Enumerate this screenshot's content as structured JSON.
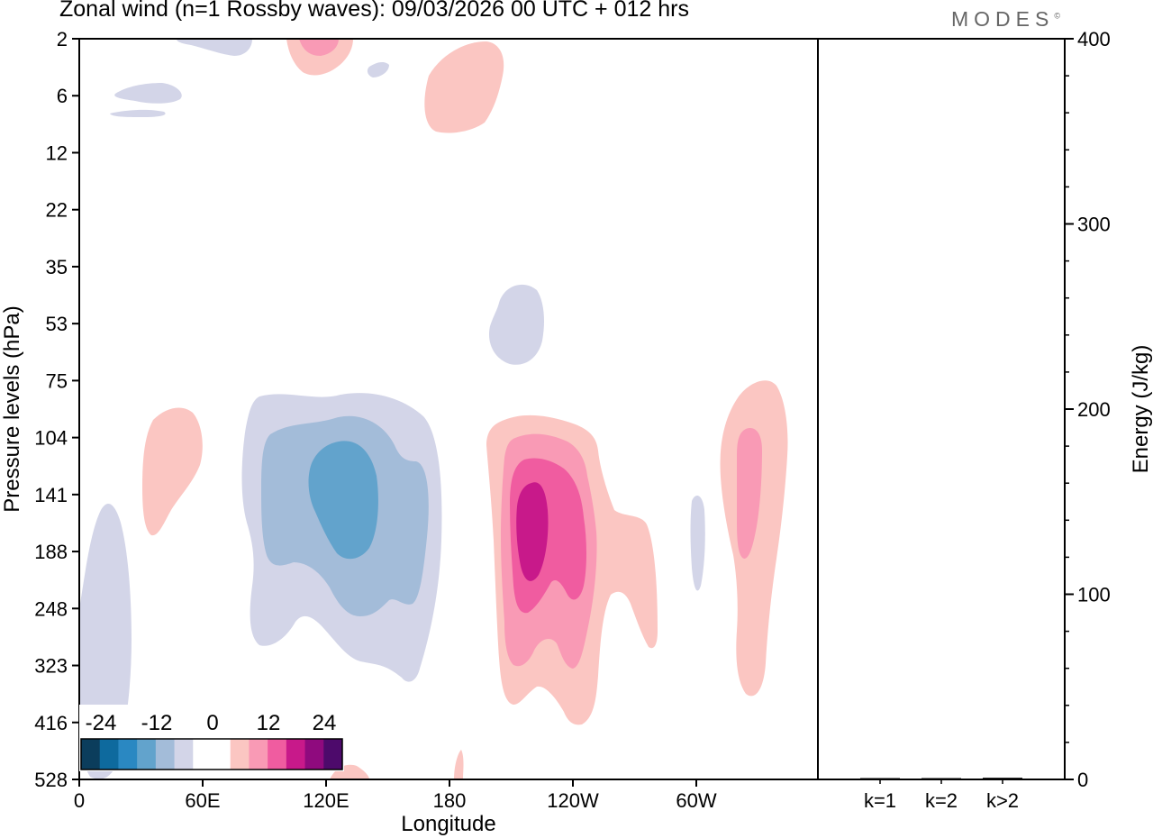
{
  "header": {
    "title": "Zonal wind (n=1 Rossby waves):  09/03/2026  00 UTC  + 012 hrs",
    "logo_text": "MODES",
    "logo_mark": "©"
  },
  "chart_data": [
    {
      "type": "heatmap",
      "title": "Zonal wind (n=1 Rossby waves):  09/03/2026  00 UTC  + 012 hrs",
      "xlabel": "Longitude",
      "ylabel": "Pressure levels (hPa)",
      "x_ticks": [
        "0",
        "60E",
        "120E",
        "180",
        "120W",
        "60W"
      ],
      "y_ticks": [
        "2",
        "6",
        "12",
        "22",
        "35",
        "53",
        "75",
        "104",
        "141",
        "188",
        "248",
        "323",
        "416",
        "528"
      ],
      "colorbar": {
        "labels": [
          "-24",
          "-12",
          "0",
          "12",
          "24"
        ],
        "colors": [
          "#0b3d5c",
          "#0e6a9e",
          "#2a88c2",
          "#62a3cc",
          "#a3bcd9",
          "#d3d5e8",
          "#ffffff",
          "#ffffff",
          "#fbc6c2",
          "#f99ab5",
          "#f05ca0",
          "#c8198a",
          "#8f0a7e",
          "#4d0a6b"
        ]
      },
      "anomalies": [
        {
          "name": "negative-cell-120E",
          "levels": [
            1,
            2,
            3
          ]
        },
        {
          "name": "positive-cell-150W",
          "levels": [
            1,
            2,
            3,
            4
          ]
        },
        {
          "name": "positive-cell-40W",
          "levels": [
            1,
            2
          ]
        },
        {
          "name": "positive-cell-30E",
          "levels": [
            1
          ]
        },
        {
          "name": "negative-column-10E",
          "levels": [
            1
          ]
        },
        {
          "name": "negative-cell-160W-upper",
          "levels": [
            1
          ]
        },
        {
          "name": "positive-cell-180-stratosphere",
          "levels": [
            1
          ]
        }
      ]
    },
    {
      "type": "bar",
      "categories": [
        "k=1",
        "k=2",
        "k>2"
      ],
      "values": [
        0.6,
        0.5,
        0.9
      ],
      "ylabel": "Energy (J/kg)",
      "ylim": [
        0,
        400
      ],
      "y_ticks": [
        "0",
        "100",
        "200",
        "300",
        "400"
      ]
    }
  ]
}
